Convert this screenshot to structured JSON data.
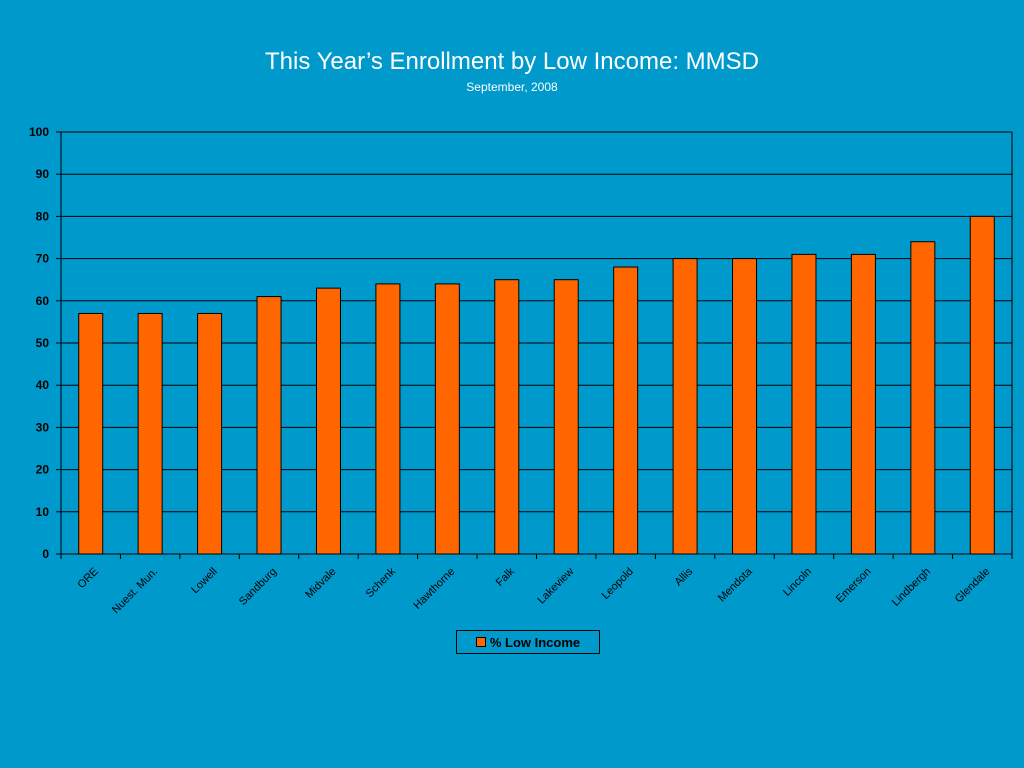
{
  "colors": {
    "background": "#0099cc",
    "bar_fill": "#ff6600",
    "bar_stroke": "#000000",
    "gridline": "#000000",
    "text": "#000000",
    "title_text": "#ffffff"
  },
  "chart_data": {
    "type": "bar",
    "title": "This Year’s Enrollment by Low Income: MMSD",
    "subtitle": "September, 2008",
    "xlabel": "",
    "ylabel": "",
    "ylim": [
      0,
      100
    ],
    "yticks": [
      0,
      10,
      20,
      30,
      40,
      50,
      60,
      70,
      80,
      90,
      100
    ],
    "grid": true,
    "legend_position": "bottom",
    "categories": [
      "ORE",
      "Nuest. Mun.",
      "Lowell",
      "Sandburg",
      "Midvale",
      "Schenk",
      "Hawthorne",
      "Falk",
      "Lakeview",
      "Leopold",
      "Allis",
      "Mendota",
      "Lincoln",
      "Emerson",
      "Lindbergh",
      "Glendale"
    ],
    "series": [
      {
        "name": "% Low Income",
        "values": [
          57,
          57,
          57,
          61,
          63,
          64,
          64,
          65,
          65,
          68,
          70,
          70,
          71,
          71,
          74,
          80
        ]
      }
    ]
  }
}
